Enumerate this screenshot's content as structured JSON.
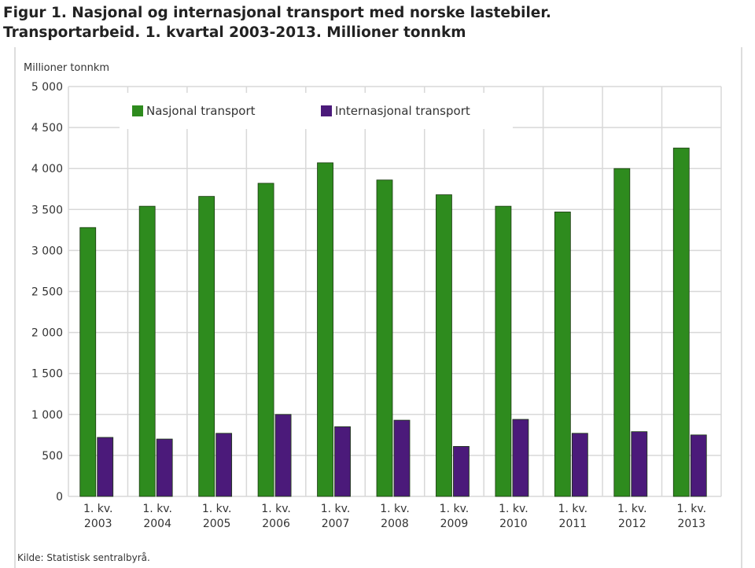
{
  "title": "Figur 1. Nasjonal og internasjonal transport med norske lastebiler.\nTransportarbeid. 1. kvartal 2003-2013. Millioner tonnkm",
  "source": "Kilde: Statistisk sentralbyrå.",
  "chart_data": {
    "type": "bar",
    "ylabel": "Millioner tonnkm",
    "ylim": [
      0,
      5000
    ],
    "yticks": [
      0,
      500,
      1000,
      1500,
      2000,
      2500,
      3000,
      3500,
      4000,
      4500,
      5000
    ],
    "ytick_labels": [
      "0",
      "500",
      "1 000",
      "1 500",
      "2 000",
      "2 500",
      "3 000",
      "3 500",
      "4 000",
      "4 500",
      "5 000"
    ],
    "categories": [
      "1. kv. 2003",
      "1. kv. 2004",
      "1. kv. 2005",
      "1. kv. 2006",
      "1. kv. 2007",
      "1. kv. 2008",
      "1. kv. 2009",
      "1. kv. 2010",
      "1. kv. 2011",
      "1. kv. 2012",
      "1. kv. 2013"
    ],
    "grid": true,
    "legend_position": "top",
    "series": [
      {
        "name": "Nasjonal transport",
        "color": "#2e8b1e",
        "values": [
          3280,
          3540,
          3660,
          3820,
          4070,
          3860,
          3680,
          3540,
          3470,
          4000,
          4250
        ]
      },
      {
        "name": "Internasjonal transport",
        "color": "#4b1a7a",
        "values": [
          720,
          700,
          770,
          1000,
          850,
          930,
          610,
          940,
          770,
          790,
          750
        ]
      }
    ]
  }
}
